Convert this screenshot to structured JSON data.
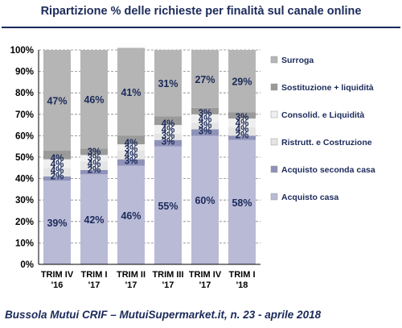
{
  "chart_data": {
    "type": "bar",
    "stacked": true,
    "title": "Ripartizione % delle richieste per finalità sul canale online",
    "categories": [
      [
        "TRIM IV",
        "'16"
      ],
      [
        "TRIM I",
        "'17"
      ],
      [
        "TRIM II",
        "'17"
      ],
      [
        "TRIM III",
        "'17"
      ],
      [
        "TRIM IV",
        "'17"
      ],
      [
        "TRIM I",
        "'18"
      ]
    ],
    "ylim": [
      0,
      100
    ],
    "yticks": [
      "0%",
      "10%",
      "20%",
      "30%",
      "40%",
      "50%",
      "60%",
      "70%",
      "80%",
      "90%",
      "100%"
    ],
    "legend_position": "right",
    "series": [
      {
        "name": "Acquisto casa",
        "color": "#b9bad6",
        "values": [
          39,
          42,
          46,
          55,
          60,
          58
        ],
        "labels": [
          "39%",
          "42%",
          "46%",
          "55%",
          "60%",
          "58%"
        ]
      },
      {
        "name": "Acquisto seconda casa",
        "color": "#8f92b8",
        "values": [
          2,
          2,
          3,
          3,
          3,
          2
        ],
        "labels": [
          "2%",
          "2%",
          "3%",
          "3%",
          "3%",
          "2%"
        ]
      },
      {
        "name": "Ristrutt. e Costruzione",
        "color": "#e4e4e4",
        "values": [
          4,
          4,
          4,
          3,
          3,
          4
        ],
        "labels": [
          "4%",
          "4%",
          "4%",
          "3%",
          "3%",
          "4%"
        ]
      },
      {
        "name": "Consolid. e Liquidità",
        "color": "#efefef",
        "values": [
          4,
          3,
          3,
          4,
          4,
          4
        ],
        "labels": [
          "4%",
          "3%",
          "3%",
          "4%",
          "4%",
          "4%"
        ]
      },
      {
        "name": "Sostituzione + liquidità",
        "color": "#9a9a9a",
        "values": [
          4,
          3,
          4,
          4,
          3,
          3
        ],
        "labels": [
          "4%",
          "3%",
          "4%",
          "4%",
          "3%",
          "3%"
        ]
      },
      {
        "name": "Surroga",
        "color": "#b5b5b5",
        "values": [
          47,
          46,
          41,
          31,
          27,
          29
        ],
        "labels": [
          "47%",
          "46%",
          "41%",
          "31%",
          "27%",
          "29%"
        ]
      }
    ]
  },
  "footer": "Bussola Mutui CRIF – MutuiSupermarket.it, n. 23 - aprile 2018"
}
